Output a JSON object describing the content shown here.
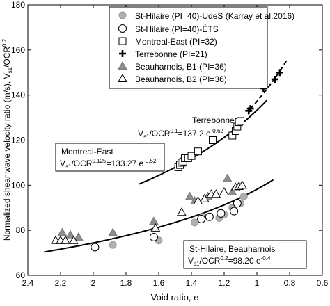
{
  "chart_data": {
    "type": "scatter",
    "xlabel": "Void ratio, e",
    "ylabel_main": "Normalized shear wave velocity ratio (m/s), V",
    "ylabel_sub": "s1",
    "ylabel_mid": "/OCR",
    "ylabel_sup": "0.2",
    "xlim": [
      2.4,
      0.6
    ],
    "ylim": [
      60,
      180
    ],
    "x_reversed": true,
    "xticks": [
      2.4,
      2.2,
      2.0,
      1.8,
      1.6,
      1.4,
      1.2,
      1.0,
      0.8,
      0.6
    ],
    "xtick_labels": [
      "2.4",
      "2.2",
      "2",
      "1.8",
      "1.6",
      "1.4",
      "1.2",
      "1",
      "0.8",
      "0.6"
    ],
    "yticks": [
      60,
      80,
      100,
      120,
      140,
      160,
      180
    ],
    "ytick_labels": [
      "60",
      "80",
      "100",
      "120",
      "140",
      "160",
      "180"
    ],
    "legend_position": "top-right",
    "series": [
      {
        "name": "St-Hilaire (PI=40)-UdeS (Karray et al.2016)",
        "marker": "circle-filled",
        "points": [
          [
            1.88,
            73.5
          ],
          [
            1.6,
            75.5
          ],
          [
            1.38,
            83.5
          ],
          [
            1.33,
            86
          ],
          [
            1.23,
            85.5
          ],
          [
            1.22,
            88
          ],
          [
            1.2,
            87
          ],
          [
            1.15,
            90
          ],
          [
            1.1,
            92
          ],
          [
            1.08,
            95
          ]
        ]
      },
      {
        "name": "St-Hilaire (PI=40)-ÉTS",
        "marker": "circle-open",
        "points": [
          [
            1.99,
            72.5
          ],
          [
            1.63,
            77
          ],
          [
            1.34,
            85
          ],
          [
            1.29,
            86
          ],
          [
            1.22,
            87.5
          ],
          [
            1.14,
            88.5
          ],
          [
            1.12,
            92
          ]
        ]
      },
      {
        "name": "Montreal-East (PI=32)",
        "marker": "square-open",
        "points": [
          [
            1.48,
            108
          ],
          [
            1.47,
            109
          ],
          [
            1.46,
            110
          ],
          [
            1.45,
            110.5
          ],
          [
            1.44,
            112
          ],
          [
            1.42,
            112
          ],
          [
            1.4,
            113
          ],
          [
            1.36,
            115
          ],
          [
            1.27,
            120
          ],
          [
            1.15,
            122
          ],
          [
            1.13,
            124
          ],
          [
            1.12,
            126
          ],
          [
            1.11,
            128
          ],
          [
            1.1,
            128.5
          ]
        ]
      },
      {
        "name": "Terrebonne (PI=21)",
        "marker": "plus",
        "points": [
          [
            1.05,
            133
          ],
          [
            1.04,
            134
          ],
          [
            0.96,
            143
          ],
          [
            0.89,
            147
          ],
          [
            0.86,
            150
          ]
        ]
      },
      {
        "name": "Beauharnois, B1 (PI=36)",
        "marker": "triangle-filled",
        "points": [
          [
            2.19,
            79
          ],
          [
            2.14,
            78
          ],
          [
            2.09,
            77
          ],
          [
            1.88,
            79
          ],
          [
            1.63,
            84
          ],
          [
            1.41,
            95
          ],
          [
            1.38,
            93
          ],
          [
            1.3,
            95
          ],
          [
            1.18,
            103
          ],
          [
            1.15,
            97
          ]
        ]
      },
      {
        "name": "Beauharnois, B2 (PI=36)",
        "marker": "triangle-open",
        "points": [
          [
            2.23,
            75.5
          ],
          [
            2.2,
            75.5
          ],
          [
            2.17,
            75.5
          ],
          [
            2.12,
            75.5
          ],
          [
            1.62,
            81
          ],
          [
            1.46,
            88
          ],
          [
            1.36,
            93
          ],
          [
            1.32,
            94
          ],
          [
            1.28,
            96
          ],
          [
            1.25,
            96
          ],
          [
            1.2,
            97
          ],
          [
            1.13,
            99
          ],
          [
            1.11,
            99.5
          ],
          [
            1.09,
            100
          ]
        ]
      }
    ],
    "fit_curves": [
      {
        "label": "Montreal-East",
        "eq_prefix": "V",
        "eq_sub": "s1",
        "eq_mid": "/OCR",
        "eq_sup": "0.125",
        "eq_rest": "=133.27 e",
        "eq_exp": "-0.52",
        "a": 133.27,
        "b": -0.52,
        "e_from": 1.72,
        "e_to": 0.94,
        "style": "solid"
      },
      {
        "label": "Terrebonne",
        "eq_prefix": "V",
        "eq_sub": "s1",
        "eq_mid": "/OCR",
        "eq_sup": "0.1",
        "eq_rest": "=137.2 e",
        "eq_exp": "-0.62",
        "a": 137.2,
        "b": -0.62,
        "e_from": 1.04,
        "e_to": 0.82,
        "style": "dashed"
      },
      {
        "label": "St-Hilaire, Beauharnois",
        "eq_prefix": "V",
        "eq_sub": "s1",
        "eq_mid": "/OCR",
        "eq_sup": "0.2",
        "eq_rest": "=98.20 e",
        "eq_exp": "-0.4",
        "a": 98.2,
        "b": -0.4,
        "e_from": 2.3,
        "e_to": 0.9,
        "style": "solid"
      }
    ]
  }
}
